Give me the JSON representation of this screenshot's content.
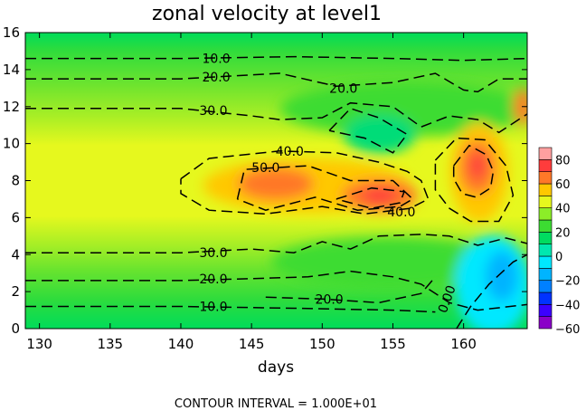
{
  "chart_data": {
    "type": "heatmap",
    "title": "zonal velocity at level1",
    "xlabel": "days",
    "ylabel": "",
    "xlim": [
      129,
      164.5
    ],
    "ylim": [
      0,
      16
    ],
    "x_ticks": [
      "130",
      "135",
      "140",
      "145",
      "150",
      "155",
      "160"
    ],
    "y_ticks": [
      "0",
      "2",
      "4",
      "6",
      "8",
      "10",
      "12",
      "14",
      "16"
    ],
    "footnote": "CONTOUR INTERVAL = 1.000E+01",
    "colorbar": {
      "labels": [
        "80",
        "60",
        "40",
        "20",
        "0",
        "−20",
        "−40",
        "−60"
      ],
      "range": [
        -60,
        80
      ],
      "bands": [
        {
          "from": -60,
          "to": -50,
          "color": "#8a00c8"
        },
        {
          "from": -50,
          "to": -40,
          "color": "#3c00ff"
        },
        {
          "from": -40,
          "to": -30,
          "color": "#0033ff"
        },
        {
          "from": -30,
          "to": -20,
          "color": "#0080ff"
        },
        {
          "from": -20,
          "to": -10,
          "color": "#00b4ff"
        },
        {
          "from": -10,
          "to": 0,
          "color": "#00e8ff"
        },
        {
          "from": 0,
          "to": 10,
          "color": "#00e8b0"
        },
        {
          "from": 10,
          "to": 20,
          "color": "#00dc60"
        },
        {
          "from": 20,
          "to": 30,
          "color": "#3cdc32"
        },
        {
          "from": 30,
          "to": 40,
          "color": "#8ced28"
        },
        {
          "from": 40,
          "to": 50,
          "color": "#e6f81e"
        },
        {
          "from": 50,
          "to": 60,
          "color": "#ffc800"
        },
        {
          "from": 60,
          "to": 70,
          "color": "#ff7828"
        },
        {
          "from": 70,
          "to": 80,
          "color": "#ff3c3c"
        },
        {
          "from": 80,
          "to": 90,
          "color": "#ffa0a0"
        }
      ]
    },
    "contour_labels": [
      {
        "text": "10.0",
        "x": 142.5,
        "y": 14.6
      },
      {
        "text": "20.0",
        "x": 142.5,
        "y": 13.6
      },
      {
        "text": "20.0",
        "x": 151.5,
        "y": 13.0
      },
      {
        "text": "30.0",
        "x": 142.3,
        "y": 11.8
      },
      {
        "text": "40.0",
        "x": 147.7,
        "y": 9.6
      },
      {
        "text": "50.0",
        "x": 146.0,
        "y": 8.7
      },
      {
        "text": "40.0",
        "x": 155.6,
        "y": 6.3
      },
      {
        "text": "30.0",
        "x": 142.3,
        "y": 4.1
      },
      {
        "text": "20.0",
        "x": 142.3,
        "y": 2.7
      },
      {
        "text": "20.0",
        "x": 150.5,
        "y": 1.6
      },
      {
        "text": "10.0",
        "x": 142.3,
        "y": 1.2
      },
      {
        "text": "0.00",
        "x": 158.8,
        "y": 1.6
      }
    ],
    "contours": [
      {
        "level": 10,
        "points": [
          [
            129,
            14.6
          ],
          [
            140,
            14.6
          ],
          [
            148,
            14.7
          ],
          [
            155,
            14.6
          ],
          [
            160,
            14.5
          ],
          [
            164.5,
            14.6
          ]
        ]
      },
      {
        "level": 20,
        "points": [
          [
            129,
            13.5
          ],
          [
            140,
            13.5
          ],
          [
            147,
            13.8
          ],
          [
            151,
            13.1
          ],
          [
            155,
            13.3
          ],
          [
            158,
            13.8
          ],
          [
            160,
            12.9
          ],
          [
            161,
            12.8
          ],
          [
            162.5,
            13.5
          ],
          [
            164.5,
            13.5
          ]
        ]
      },
      {
        "level": 30,
        "points": [
          [
            129,
            11.9
          ],
          [
            140,
            11.9
          ],
          [
            145,
            11.5
          ],
          [
            147,
            11.3
          ],
          [
            150,
            11.4
          ],
          [
            152,
            12.2
          ],
          [
            155,
            12.0
          ],
          [
            157,
            10.9
          ],
          [
            159,
            11.5
          ],
          [
            161,
            11.3
          ],
          [
            162.5,
            10.6
          ],
          [
            164.5,
            11.6
          ]
        ]
      },
      {
        "level": 20,
        "points": [
          [
            150.5,
            10.7
          ],
          [
            152,
            11.9
          ],
          [
            154,
            11.4
          ],
          [
            156,
            10.5
          ],
          [
            155,
            9.5
          ],
          [
            153,
            10.3
          ],
          [
            150.5,
            10.7
          ]
        ]
      },
      {
        "level": 40,
        "points": [
          [
            140,
            8.1
          ],
          [
            142,
            9.2
          ],
          [
            147,
            9.6
          ],
          [
            151,
            9.5
          ],
          [
            154,
            9.0
          ],
          [
            156,
            8.5
          ],
          [
            157,
            8.0
          ],
          [
            157.5,
            7.0
          ],
          [
            156.2,
            6.5
          ],
          [
            153,
            6.2
          ],
          [
            150,
            6.6
          ],
          [
            146,
            6.2
          ],
          [
            142,
            6.4
          ],
          [
            140,
            7.3
          ],
          [
            140,
            8.1
          ]
        ]
      },
      {
        "level": 50,
        "points": [
          [
            144,
            7.0
          ],
          [
            144.5,
            8.6
          ],
          [
            149,
            8.8
          ],
          [
            152,
            8.0
          ],
          [
            155,
            8.0
          ],
          [
            156.4,
            7.0
          ],
          [
            155.5,
            6.6
          ],
          [
            152.5,
            6.4
          ],
          [
            149.5,
            7.1
          ],
          [
            146,
            6.4
          ],
          [
            144,
            7.0
          ]
        ]
      },
      {
        "level": 60,
        "points": [
          [
            151,
            7.0
          ],
          [
            153.5,
            7.6
          ],
          [
            155.8,
            7.4
          ],
          [
            155.5,
            6.8
          ],
          [
            153.5,
            6.5
          ],
          [
            151,
            7.0
          ]
        ]
      },
      {
        "level": 40,
        "points": [
          [
            158,
            9.1
          ],
          [
            159.5,
            10.3
          ],
          [
            161.5,
            10.2
          ],
          [
            163,
            8.8
          ],
          [
            163.5,
            7.2
          ],
          [
            162.5,
            5.8
          ],
          [
            160.5,
            5.8
          ],
          [
            159,
            6.5
          ],
          [
            158,
            7.5
          ],
          [
            158,
            9.1
          ]
        ]
      },
      {
        "level": 50,
        "points": [
          [
            159.3,
            8.8
          ],
          [
            160.4,
            9.9
          ],
          [
            161.6,
            9.4
          ],
          [
            162.1,
            8.5
          ],
          [
            161.9,
            7.6
          ],
          [
            160.9,
            7.1
          ],
          [
            159.9,
            7.3
          ],
          [
            159.3,
            8.1
          ],
          [
            159.3,
            8.8
          ]
        ]
      },
      {
        "level": 30,
        "points": [
          [
            129,
            4.1
          ],
          [
            140,
            4.1
          ],
          [
            145,
            4.3
          ],
          [
            148,
            4.1
          ],
          [
            150,
            4.7
          ],
          [
            152,
            4.3
          ],
          [
            154,
            5.0
          ],
          [
            157,
            5.1
          ],
          [
            159,
            5.0
          ],
          [
            161,
            4.5
          ],
          [
            163,
            4.9
          ],
          [
            164.5,
            4.6
          ]
        ]
      },
      {
        "level": 20,
        "points": [
          [
            129,
            2.6
          ],
          [
            140,
            2.6
          ],
          [
            145,
            2.7
          ],
          [
            149,
            2.8
          ],
          [
            152,
            3.1
          ],
          [
            155,
            2.8
          ],
          [
            157,
            2.4
          ],
          [
            159,
            1.4
          ],
          [
            161,
            1.0
          ],
          [
            164.5,
            1.3
          ]
        ]
      },
      {
        "level": 20,
        "points": [
          [
            146,
            1.7
          ],
          [
            150,
            1.6
          ],
          [
            154,
            1.4
          ],
          [
            157,
            1.9
          ],
          [
            158,
            2.8
          ]
        ]
      },
      {
        "level": 10,
        "points": [
          [
            129,
            1.2
          ],
          [
            140,
            1.2
          ],
          [
            148,
            1.1
          ],
          [
            155,
            1.0
          ],
          [
            158,
            0.9
          ]
        ]
      },
      {
        "level": 0,
        "points": [
          [
            159.5,
            0.0
          ],
          [
            160.5,
            1.2
          ],
          [
            161.8,
            2.4
          ],
          [
            163.5,
            3.6
          ],
          [
            164.5,
            4.0
          ]
        ]
      }
    ]
  }
}
